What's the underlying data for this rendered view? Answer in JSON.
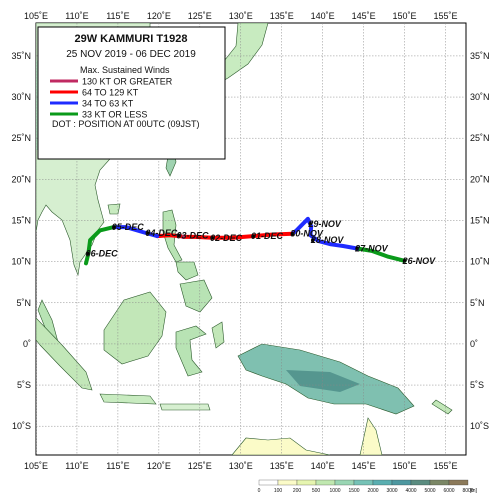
{
  "map": {
    "extent": {
      "lon_min": 105,
      "lon_max": 157.5,
      "lat_min": -13.5,
      "lat_max": 39
    },
    "lon_ticks": [
      {
        "value": 105,
        "label": "105˚E"
      },
      {
        "value": 110,
        "label": "110˚E"
      },
      {
        "value": 115,
        "label": "115˚E"
      },
      {
        "value": 120,
        "label": "120˚E"
      },
      {
        "value": 125,
        "label": "125˚E"
      },
      {
        "value": 130,
        "label": "130˚E"
      },
      {
        "value": 135,
        "label": "135˚E"
      },
      {
        "value": 140,
        "label": "140˚E"
      },
      {
        "value": 145,
        "label": "145˚E"
      },
      {
        "value": 150,
        "label": "150˚E"
      },
      {
        "value": 155,
        "label": "155˚E"
      }
    ],
    "lat_ticks": [
      {
        "value": 35,
        "label": "35˚N"
      },
      {
        "value": 30,
        "label": "30˚N"
      },
      {
        "value": 25,
        "label": "25˚N"
      },
      {
        "value": 20,
        "label": "20˚N"
      },
      {
        "value": 15,
        "label": "15˚N"
      },
      {
        "value": 10,
        "label": "10˚N"
      },
      {
        "value": 5,
        "label": "5˚N"
      },
      {
        "value": 0,
        "label": "0˚"
      },
      {
        "value": -5,
        "label": "5˚S"
      },
      {
        "value": -10,
        "label": "10˚S"
      }
    ]
  },
  "legend": {
    "title": "29W  KAMMURI  T1928",
    "dates": "25 NOV 2019 - 06 DEC 2019",
    "winds_header": "Max. Sustained Winds",
    "items": [
      {
        "label": "130 KT OR GREATER",
        "color": "#c02a62"
      },
      {
        "label": "64 TO 129 KT",
        "color": "#ff0000"
      },
      {
        "label": "34 TO 63 KT",
        "color": "#1f2bff"
      },
      {
        "label": "33 KT OR LESS",
        "color": "#0a9a1a"
      }
    ],
    "dot_note": "DOT : POSITION AT 00UTC (09JST)"
  },
  "track": {
    "segments": [
      {
        "category": "33 KT OR LESS",
        "color": "#0a9a1a",
        "points": [
          [
            150.0,
            10.1
          ],
          [
            148.0,
            10.6
          ],
          [
            146.0,
            11.3
          ],
          [
            144.2,
            11.6
          ]
        ]
      },
      {
        "category": "34 TO 63 KT",
        "color": "#1f2bff",
        "points": [
          [
            144.2,
            11.6
          ],
          [
            142.5,
            11.9
          ],
          [
            141.0,
            12.1
          ],
          [
            139.5,
            12.5
          ],
          [
            138.5,
            13.2
          ],
          [
            138.6,
            14.3
          ],
          [
            138.2,
            15.2
          ],
          [
            136.8,
            13.8
          ],
          [
            136.3,
            13.4
          ]
        ]
      },
      {
        "category": "64 TO 129 KT",
        "color": "#ff0000",
        "points": [
          [
            136.3,
            13.4
          ],
          [
            134.0,
            13.3
          ],
          [
            131.5,
            13.1
          ],
          [
            129.0,
            12.9
          ],
          [
            126.5,
            12.9
          ],
          [
            124.5,
            13.0
          ],
          [
            123.0,
            13.0
          ]
        ]
      },
      {
        "category": "130 KT OR GREATER",
        "color": "#c02a62",
        "points": [
          [
            123.0,
            13.0
          ],
          [
            122.6,
            13.1
          ]
        ]
      },
      {
        "category": "64 TO 129 KT",
        "color": "#ff0000",
        "points": [
          [
            122.6,
            13.1
          ],
          [
            121.3,
            13.2
          ],
          [
            119.8,
            13.1
          ]
        ]
      },
      {
        "category": "34 TO 63 KT",
        "color": "#1f2bff",
        "points": [
          [
            119.8,
            13.1
          ],
          [
            118.0,
            13.6
          ],
          [
            116.0,
            14.2
          ],
          [
            114.5,
            14.2
          ]
        ]
      },
      {
        "category": "33 KT OR LESS",
        "color": "#0a9a1a",
        "points": [
          [
            114.5,
            14.2
          ],
          [
            112.8,
            13.8
          ],
          [
            111.6,
            12.6
          ],
          [
            111.4,
            11.0
          ],
          [
            111.1,
            9.8
          ]
        ]
      }
    ],
    "day_labels": [
      {
        "text": "26-NOV",
        "lon": 150.0,
        "lat": 10.1
      },
      {
        "text": "27-NOV",
        "lon": 144.2,
        "lat": 11.6
      },
      {
        "text": "28-NOV",
        "lon": 138.8,
        "lat": 12.6
      },
      {
        "text": "29-NOV",
        "lon": 138.5,
        "lat": 14.6
      },
      {
        "text": "30-NOV",
        "lon": 136.3,
        "lat": 13.4
      },
      {
        "text": "01-DEC",
        "lon": 131.5,
        "lat": 13.1
      },
      {
        "text": "02-DEC",
        "lon": 126.5,
        "lat": 12.9
      },
      {
        "text": "03-DEC",
        "lon": 122.4,
        "lat": 13.2
      },
      {
        "text": "04-DEC",
        "lon": 118.6,
        "lat": 13.5
      },
      {
        "text": "05-DEC",
        "lon": 114.5,
        "lat": 14.2
      },
      {
        "text": "06-DEC",
        "lon": 111.3,
        "lat": 11.0
      }
    ]
  },
  "elevation_scale": {
    "unit": "[m]",
    "ticks": [
      "0",
      "100",
      "200",
      "500",
      "1000",
      "1500",
      "2000",
      "3000",
      "4000",
      "5000",
      "6000",
      "8000"
    ],
    "colors": [
      "#ffffff",
      "#fbfbc8",
      "#e6f5b0",
      "#c0e8b0",
      "#9ad6b4",
      "#76c2b6",
      "#5aaeb0",
      "#4e98a0",
      "#5a8c80",
      "#7b8766",
      "#8c7a5a"
    ]
  }
}
